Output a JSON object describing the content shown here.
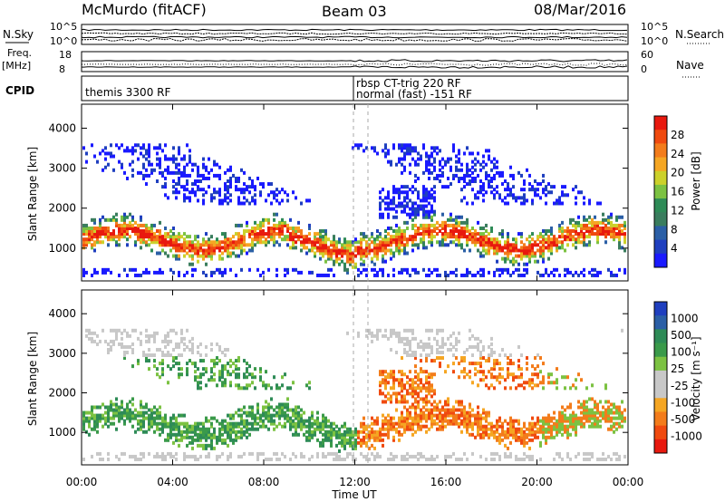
{
  "header": {
    "title": "McMurdo (fitACF)",
    "beam": "Beam 03",
    "date": "08/Mar/2016"
  },
  "left_labels": {
    "nsky": "N.Sky",
    "freq": "Freq.",
    "freq_unit": "[MHz]",
    "cpid": "CPID"
  },
  "right_labels": {
    "nsearch": "N.Search",
    "nave": "Nave"
  },
  "top_scales": {
    "noise_top": "10^5",
    "noise_bottom": "10^0",
    "noise_right_top": "10^5",
    "noise_right_bottom": "10^0",
    "freq_top": "18",
    "freq_bottom": "8",
    "nave_top": "60",
    "nave_bottom": "0"
  },
  "cpid": {
    "left_text": "themis 3300 RF",
    "right_text_1": "rbsp CT-trig 220 RF",
    "right_text_2": "normal (fast) -151 RF"
  },
  "power_colorbar": {
    "label": "Power [dB]",
    "ticks": [
      "28",
      "24",
      "20",
      "16",
      "12",
      "8",
      "4"
    ],
    "colors": [
      "#e8190f",
      "#f04a0f",
      "#f37c1b",
      "#f5a623",
      "#ccd12b",
      "#7cc242",
      "#2e8b57",
      "#3a7d5e",
      "#2b5fa6",
      "#1f3fbf",
      "#1a1aff"
    ]
  },
  "velocity_colorbar": {
    "label": "Velocity [m s⁻¹]",
    "ticks": [
      "1000",
      "500",
      "100",
      "25",
      "-25",
      "-100",
      "-500",
      "-1000"
    ],
    "colors": [
      "#1f3fbf",
      "#2b5fa6",
      "#2e8b57",
      "#3a9a4a",
      "#7cc242",
      "#c8c8c8",
      "#c8c8c8",
      "#f5a623",
      "#f37c1b",
      "#f04a0f",
      "#e8190f"
    ]
  },
  "x_axis": {
    "title": "Time UT",
    "ticks": [
      "00:00",
      "04:00",
      "08:00",
      "12:00",
      "16:00",
      "20:00",
      "00:00"
    ]
  },
  "chart_data": [
    {
      "type": "heatmap",
      "title": "Power",
      "ylabel": "Slant Range [km]",
      "xlabel": "",
      "y_ticks": [
        1000,
        2000,
        3000,
        4000
      ],
      "ylim": [
        180,
        4600
      ],
      "x_ticks": [
        "00:00",
        "04:00",
        "08:00",
        "12:00",
        "16:00",
        "20:00",
        "00:00"
      ],
      "xlim_hours": [
        0,
        24
      ],
      "colorbar": {
        "label": "Power [dB]",
        "range": [
          0,
          30
        ]
      },
      "main_band": {
        "range_km": [
          700,
          1700
        ],
        "dominant_values_db": "14-30"
      },
      "upper_echoes_km": [
        2000,
        3600
      ]
    },
    {
      "type": "heatmap",
      "title": "Velocity",
      "ylabel": "Slant Range [km]",
      "xlabel": "Time UT",
      "y_ticks": [
        1000,
        2000,
        3000,
        4000
      ],
      "ylim": [
        180,
        4600
      ],
      "x_ticks": [
        "00:00",
        "04:00",
        "08:00",
        "12:00",
        "16:00",
        "20:00",
        "00:00"
      ],
      "xlim_hours": [
        0,
        24
      ],
      "colorbar": {
        "label": "Velocity [m s⁻¹]",
        "range": [
          -1000,
          1000
        ]
      },
      "segments": [
        {
          "hours": [
            0,
            12
          ],
          "dominant_velocity": "positive (100 to 500)"
        },
        {
          "hours": [
            12,
            20
          ],
          "dominant_velocity": "negative (-100 to -500)"
        },
        {
          "hours": [
            20,
            24
          ],
          "dominant_velocity": "mixed"
        }
      ]
    }
  ]
}
